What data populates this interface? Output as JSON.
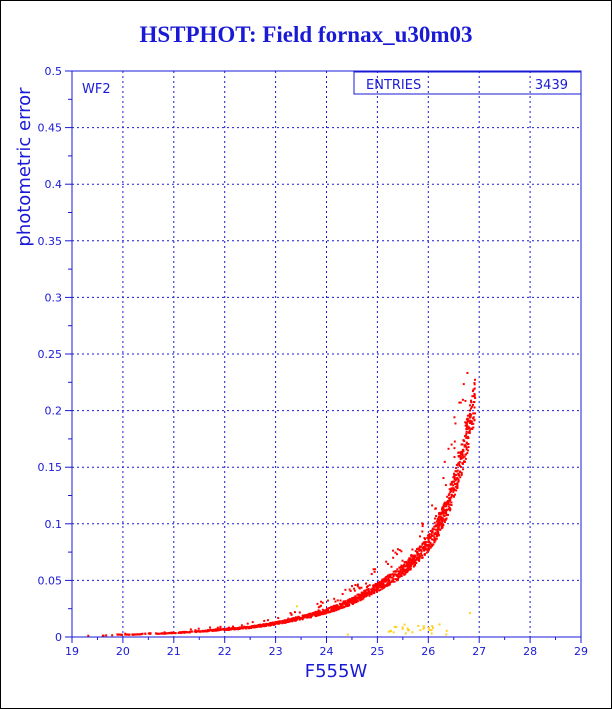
{
  "title": "HSTPHOT: Field fornax_u30m03",
  "chart_data": {
    "type": "scatter",
    "title": "HSTPHOT: Field fornax_u30m03",
    "xlabel": "F555W",
    "ylabel": "photometric error",
    "xlim": [
      19,
      29
    ],
    "ylim": [
      0,
      0.5
    ],
    "x_ticks": [
      "19",
      "20",
      "21",
      "22",
      "23",
      "24",
      "25",
      "26",
      "27",
      "28",
      "29"
    ],
    "y_ticks": [
      "0",
      "0.05",
      "0.1",
      "0.15",
      "0.2",
      "0.25",
      "0.3",
      "0.35",
      "0.4",
      "0.45",
      "0.5"
    ],
    "grid": true,
    "panel_label": "WF2",
    "stats_box": {
      "label": "ENTRIES",
      "value": "3439"
    },
    "colors": {
      "axis": "#1a1ad6",
      "main_points": "#ff0000",
      "secondary_points": "#ffd21e"
    },
    "series": [
      {
        "color": "#ff0000",
        "x": [
          19.3,
          19.6,
          19.9,
          20.2,
          20.5,
          20.8,
          21.2,
          21.5,
          21.8,
          22.1,
          22.4,
          22.7,
          23.0,
          23.3,
          23.6,
          23.9,
          24.2,
          24.5,
          24.8,
          25.1,
          25.4,
          25.6,
          25.8,
          26.0,
          26.1,
          26.2,
          26.3,
          26.4,
          26.5,
          26.6,
          26.7,
          26.8,
          26.9
        ],
        "y": [
          0.002,
          0.002,
          0.003,
          0.003,
          0.004,
          0.004,
          0.005,
          0.006,
          0.007,
          0.008,
          0.009,
          0.011,
          0.013,
          0.016,
          0.019,
          0.023,
          0.027,
          0.033,
          0.04,
          0.048,
          0.057,
          0.065,
          0.074,
          0.085,
          0.092,
          0.1,
          0.11,
          0.122,
          0.136,
          0.152,
          0.17,
          0.19,
          0.212
        ]
      },
      {
        "color": "#ffd21e",
        "x": [
          23.4,
          24.4,
          25.3,
          25.6,
          25.9,
          26.2,
          26.8
        ],
        "y": [
          0.028,
          0.003,
          0.005,
          0.007,
          0.009,
          0.012,
          0.022
        ]
      }
    ]
  }
}
